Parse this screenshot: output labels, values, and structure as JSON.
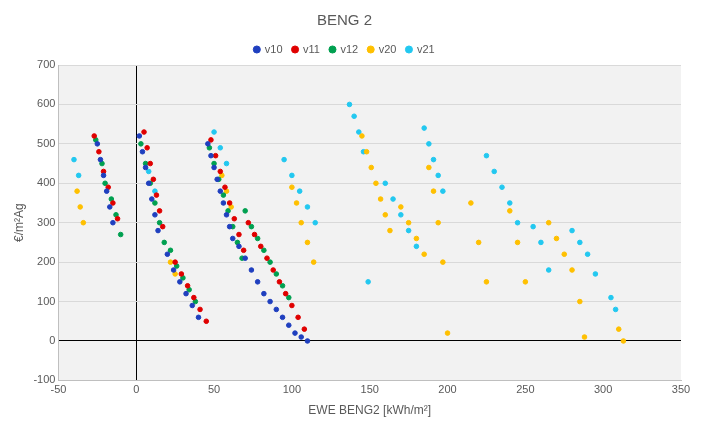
{
  "chart_data": {
    "type": "scatter",
    "title": "BENG 2",
    "x_label": "EWE BENG2 [kWh/m²]",
    "y_label": "€/m²Ag",
    "xlim": [
      -50,
      350
    ],
    "xticks": [
      -50,
      0,
      50,
      100,
      150,
      200,
      250,
      300,
      350
    ],
    "ylim": [
      -100,
      700
    ],
    "yticks": [
      -100,
      0,
      100,
      200,
      300,
      400,
      500,
      600,
      700
    ],
    "grid": true,
    "legend": "top",
    "marker": "circle",
    "series": [
      {
        "name": "v10",
        "color": "#1f3fbf",
        "x": [
          -25,
          -23,
          -21,
          -19,
          -17,
          -15,
          2,
          4,
          6,
          8,
          10,
          12,
          14,
          20,
          24,
          28,
          32,
          36,
          40,
          46,
          48,
          50,
          52,
          54,
          56,
          58,
          60,
          62,
          66,
          70,
          74,
          78,
          82,
          86,
          90,
          94,
          98,
          102,
          106,
          110
        ],
        "values": [
          500,
          460,
          420,
          380,
          340,
          300,
          520,
          480,
          440,
          400,
          360,
          320,
          280,
          220,
          180,
          150,
          120,
          90,
          60,
          500,
          470,
          440,
          410,
          380,
          350,
          320,
          290,
          260,
          240,
          210,
          180,
          150,
          120,
          100,
          80,
          60,
          40,
          20,
          10,
          0
        ]
      },
      {
        "name": "v11",
        "color": "#e00000",
        "x": [
          -27,
          -24,
          -21,
          -18,
          -15,
          -12,
          5,
          7,
          9,
          11,
          13,
          15,
          17,
          25,
          29,
          33,
          37,
          41,
          45,
          48,
          51,
          54,
          57,
          60,
          63,
          66,
          69,
          72,
          76,
          80,
          84,
          88,
          92,
          96,
          100,
          104,
          108
        ],
        "values": [
          520,
          480,
          430,
          390,
          350,
          310,
          530,
          490,
          450,
          410,
          370,
          330,
          290,
          200,
          170,
          140,
          110,
          80,
          50,
          510,
          470,
          430,
          390,
          350,
          310,
          270,
          230,
          300,
          270,
          240,
          210,
          180,
          150,
          120,
          90,
          60,
          30
        ]
      },
      {
        "name": "v12",
        "color": "#00a050",
        "x": [
          -26,
          -22,
          -20,
          -16,
          -13,
          -10,
          3,
          6,
          9,
          12,
          15,
          18,
          22,
          26,
          30,
          34,
          38,
          47,
          50,
          53,
          56,
          59,
          62,
          65,
          68,
          70,
          74,
          78,
          82,
          86,
          90,
          94,
          98
        ],
        "values": [
          510,
          450,
          400,
          360,
          320,
          270,
          500,
          450,
          400,
          350,
          300,
          250,
          230,
          190,
          160,
          130,
          100,
          490,
          450,
          410,
          370,
          330,
          290,
          250,
          210,
          330,
          290,
          260,
          230,
          200,
          170,
          140,
          110
        ]
      },
      {
        "name": "v20",
        "color": "#ffc000",
        "x": [
          -38,
          -36,
          -34,
          22,
          25,
          55,
          58,
          61,
          100,
          103,
          106,
          110,
          114,
          145,
          148,
          151,
          154,
          157,
          160,
          163,
          170,
          175,
          180,
          185,
          188,
          191,
          194,
          197,
          200,
          215,
          220,
          225,
          240,
          245,
          250,
          265,
          270,
          275,
          280,
          285,
          288,
          310,
          313
        ],
        "values": [
          380,
          340,
          300,
          200,
          170,
          420,
          380,
          340,
          390,
          350,
          300,
          250,
          200,
          520,
          480,
          440,
          400,
          360,
          320,
          280,
          340,
          300,
          260,
          220,
          440,
          380,
          300,
          200,
          20,
          350,
          250,
          150,
          330,
          250,
          150,
          300,
          260,
          220,
          180,
          100,
          10,
          30,
          0
        ]
      },
      {
        "name": "v21",
        "color": "#22c8f0",
        "x": [
          -40,
          -37,
          8,
          12,
          50,
          54,
          58,
          95,
          100,
          105,
          110,
          115,
          137,
          140,
          143,
          146,
          149,
          160,
          165,
          170,
          175,
          180,
          185,
          188,
          191,
          194,
          197,
          225,
          230,
          235,
          240,
          245,
          255,
          260,
          265,
          280,
          285,
          290,
          295,
          305,
          308
        ],
        "values": [
          460,
          420,
          430,
          380,
          530,
          490,
          450,
          460,
          420,
          380,
          340,
          300,
          600,
          570,
          530,
          480,
          150,
          400,
          360,
          320,
          280,
          240,
          540,
          500,
          460,
          420,
          380,
          470,
          430,
          390,
          350,
          300,
          290,
          250,
          180,
          280,
          250,
          220,
          170,
          110,
          80
        ]
      }
    ]
  }
}
